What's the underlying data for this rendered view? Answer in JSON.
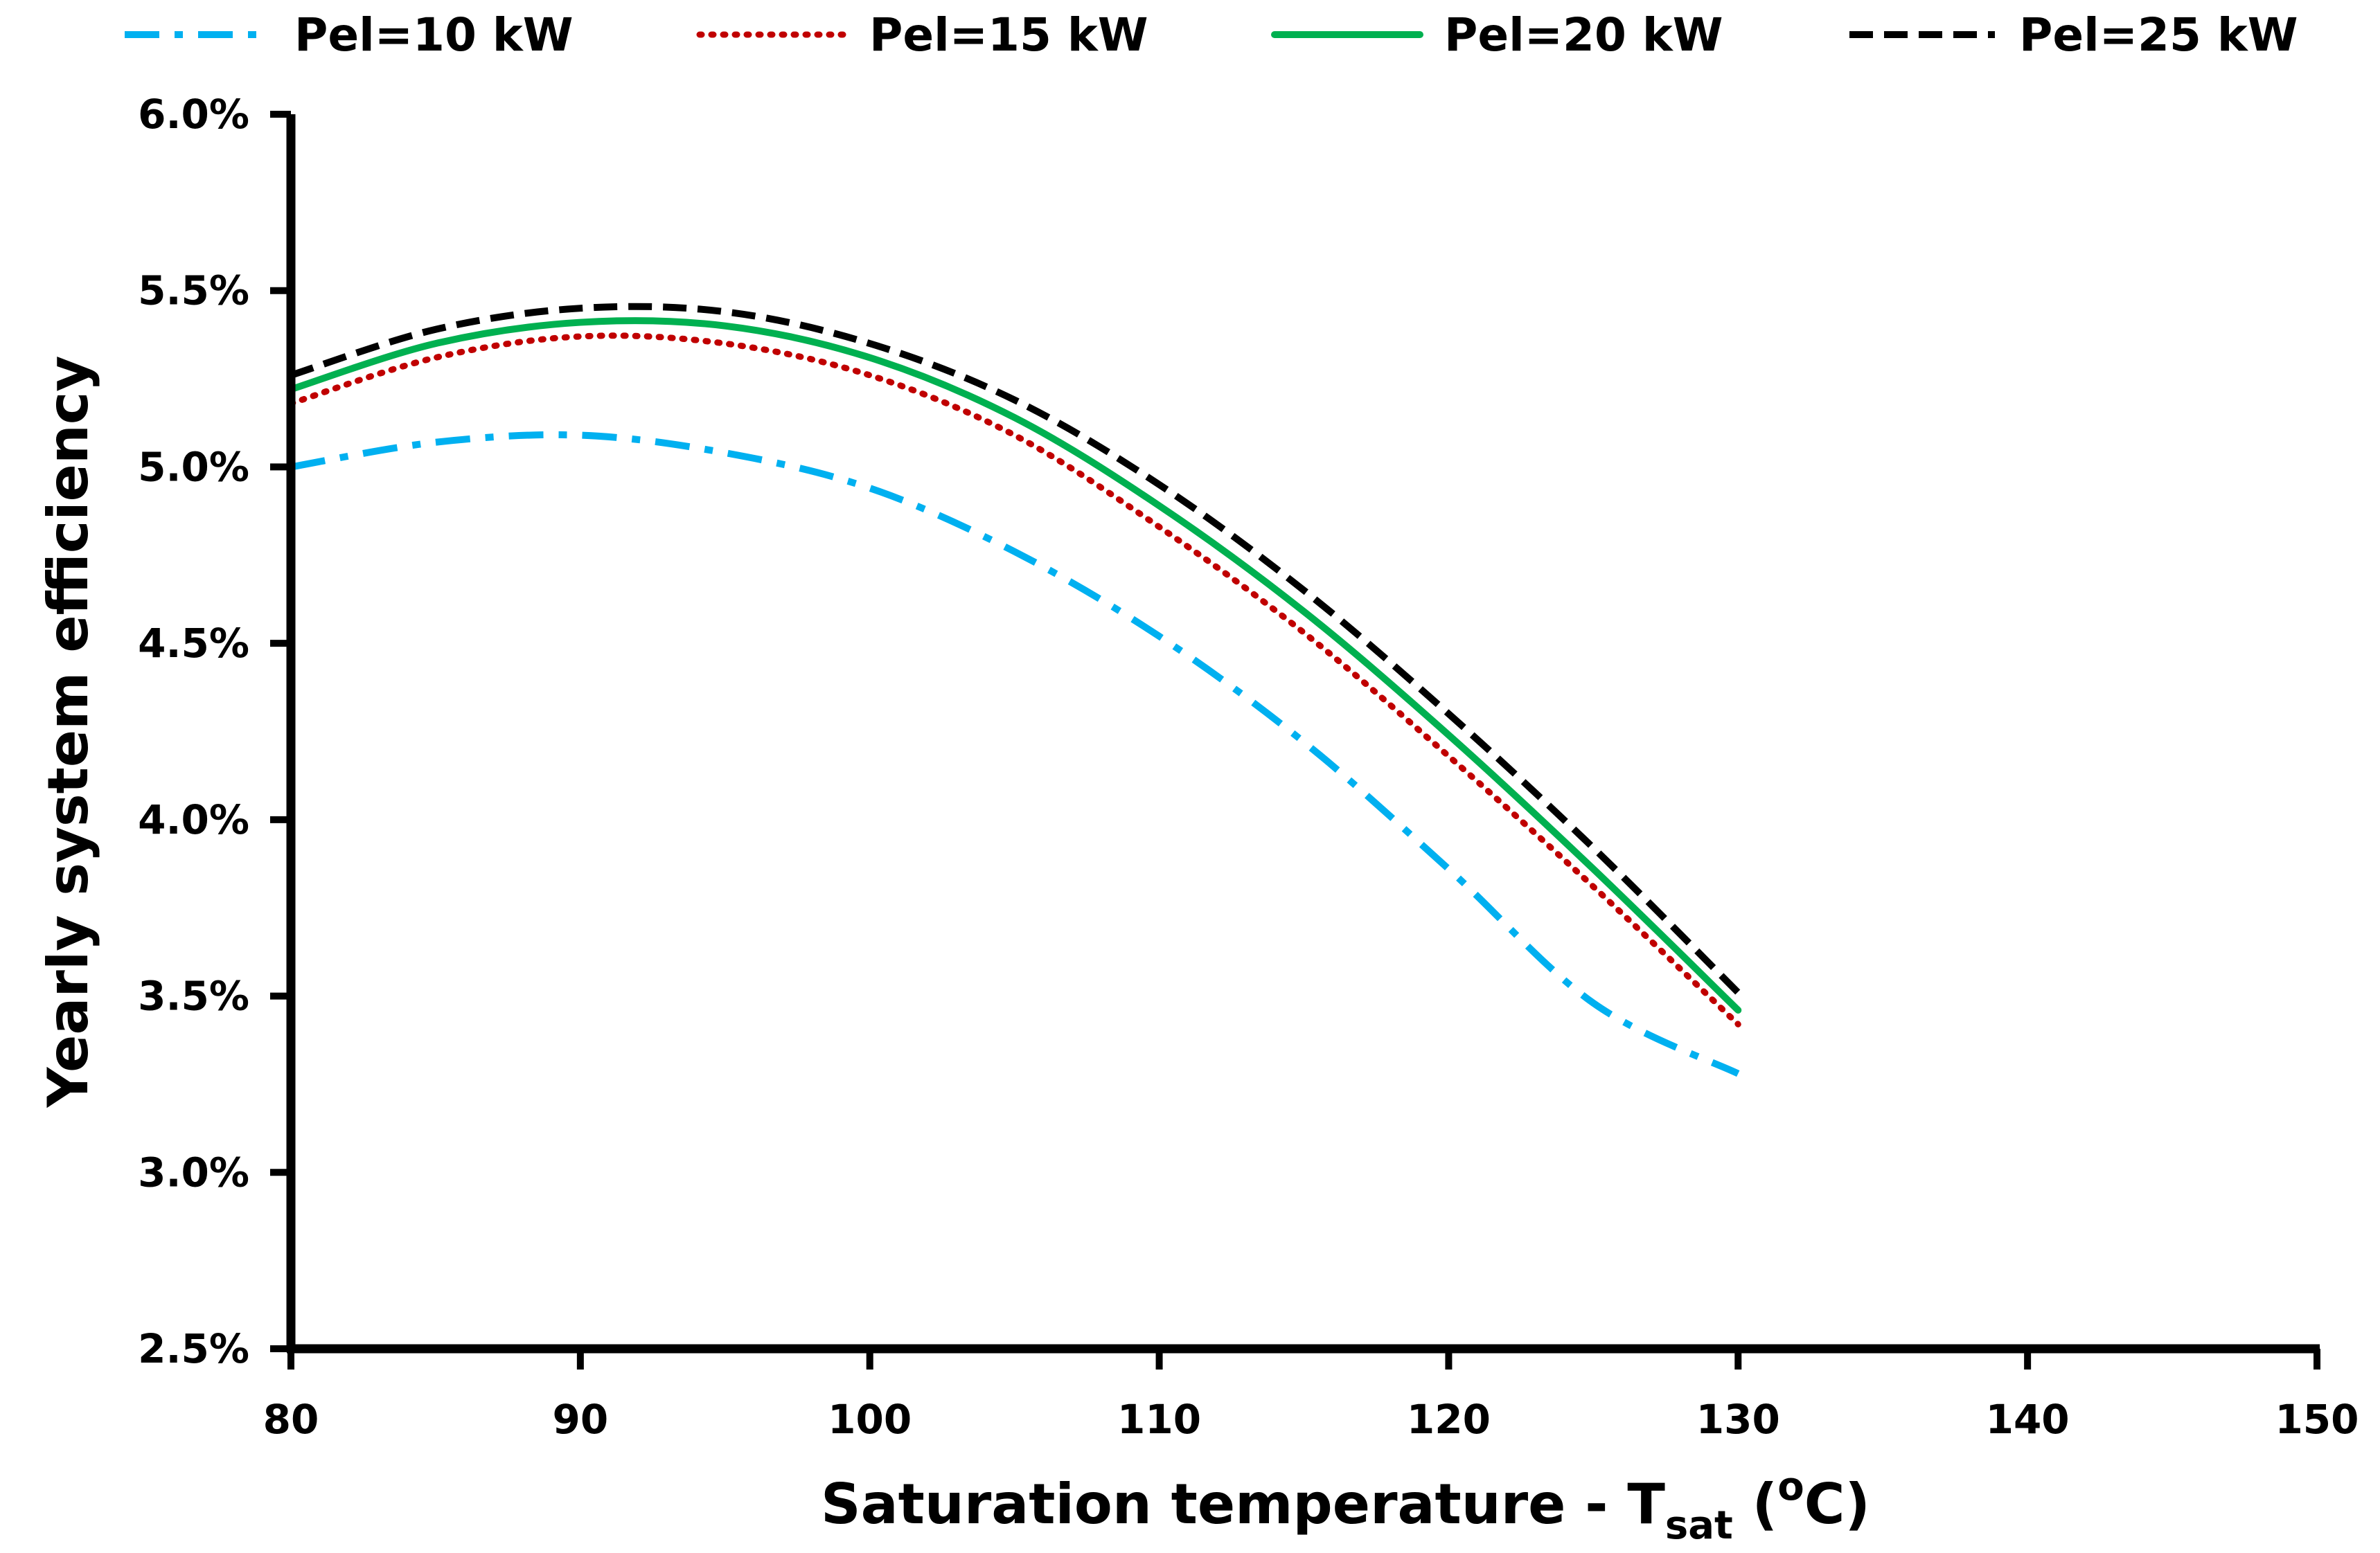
{
  "chart_data": {
    "type": "line",
    "title": "",
    "xlabel": {
      "main": "Saturation temperature - T",
      "subscript": "sat",
      "open_paren": " (",
      "superscript": "o",
      "unit": "C)"
    },
    "ylabel": "Yearly system efficiency",
    "xlim": [
      80,
      150
    ],
    "ylim": [
      0.025,
      0.06
    ],
    "x_ticks": [
      80,
      90,
      100,
      110,
      120,
      130,
      140,
      150
    ],
    "x_tick_labels": [
      "80",
      "90",
      "100",
      "110",
      "120",
      "130",
      "140",
      "150"
    ],
    "y_ticks": [
      0.025,
      0.03,
      0.035,
      0.04,
      0.045,
      0.05,
      0.055,
      0.06
    ],
    "y_tick_labels": [
      "2.5%",
      "3.0%",
      "3.5%",
      "4.0%",
      "4.5%",
      "5.0%",
      "5.5%",
      "6.0%"
    ],
    "grid": false,
    "legend_position": "top",
    "x": [
      80,
      85,
      90,
      95,
      100,
      105,
      110,
      115,
      120,
      125,
      130
    ],
    "series": [
      {
        "name": "Pel=10 kW",
        "color": "#00b0f0",
        "style": "dashdot",
        "values": [
          0.05,
          0.0507,
          0.0509,
          0.0504,
          0.0494,
          0.0476,
          0.0452,
          0.0422,
          0.0386,
          0.0348,
          0.0328
        ]
      },
      {
        "name": "Pel=15 kW",
        "color": "#c00000",
        "style": "dotted",
        "values": [
          0.0518,
          0.0531,
          0.0537,
          0.0535,
          0.0526,
          0.0509,
          0.0483,
          0.0453,
          0.0418,
          0.0381,
          0.0342
        ]
      },
      {
        "name": "Pel=20 kW",
        "color": "#00b050",
        "style": "solid",
        "values": [
          0.0522,
          0.0535,
          0.0541,
          0.054,
          0.0531,
          0.0514,
          0.0489,
          0.0459,
          0.0424,
          0.0386,
          0.0346
        ]
      },
      {
        "name": "Pel=25 kW",
        "color": "#000000",
        "style": "dashed",
        "values": [
          0.0526,
          0.0539,
          0.0545,
          0.0544,
          0.0535,
          0.0519,
          0.0495,
          0.0465,
          0.043,
          0.0392,
          0.0351
        ]
      }
    ]
  }
}
